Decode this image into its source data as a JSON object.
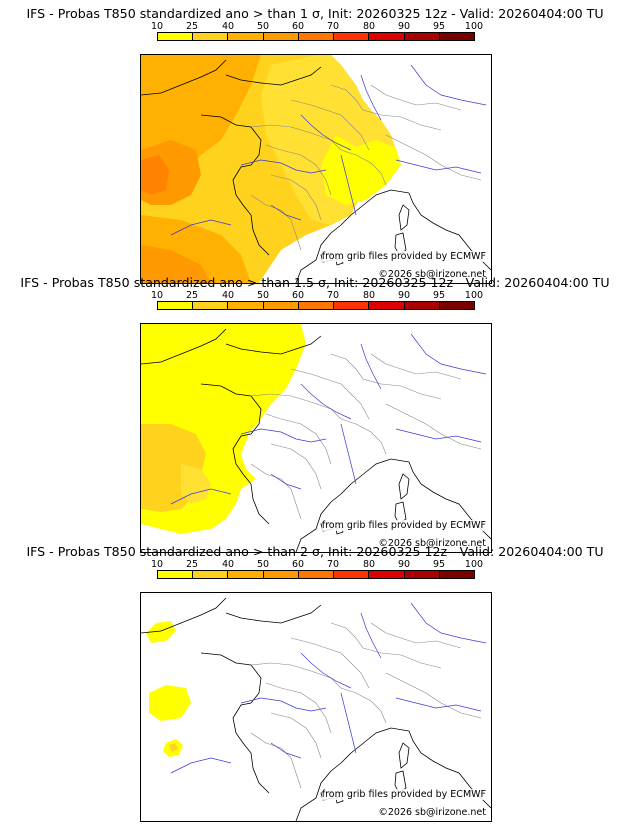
{
  "legend": {
    "ticks": [
      "10",
      "25",
      "40",
      "50",
      "60",
      "70",
      "80",
      "90",
      "95",
      "100"
    ],
    "colors": [
      "#ffff00",
      "#ffd21e",
      "#ffb000",
      "#ff9900",
      "#ff7700",
      "#ff3300",
      "#dd0000",
      "#aa0000",
      "#7a0000"
    ]
  },
  "panels": [
    {
      "title": "IFS - Probas T850  standardized ano > than 1 σ, Init: 20260325 12z - Valid: 20260404:00 TU",
      "source_credit": "from grib files provided by ECMWF",
      "copyright": "©2026 sb@irizone.net"
    },
    {
      "title": "IFS - Probas T850  standardized ano > than 1.5 σ, Init: 20260325 12z - Valid: 20260404:00 TU",
      "source_credit": "from grib files provided by ECMWF",
      "copyright": "©2026 sb@irizone.net"
    },
    {
      "title": "IFS - Probas T850  standardized ano > than 2 σ, Init: 20260325 12z - Valid: 20260404:00 TU",
      "source_credit": "from grib files provided by ECMWF",
      "copyright": "©2026 sb@irizone.net"
    }
  ]
}
